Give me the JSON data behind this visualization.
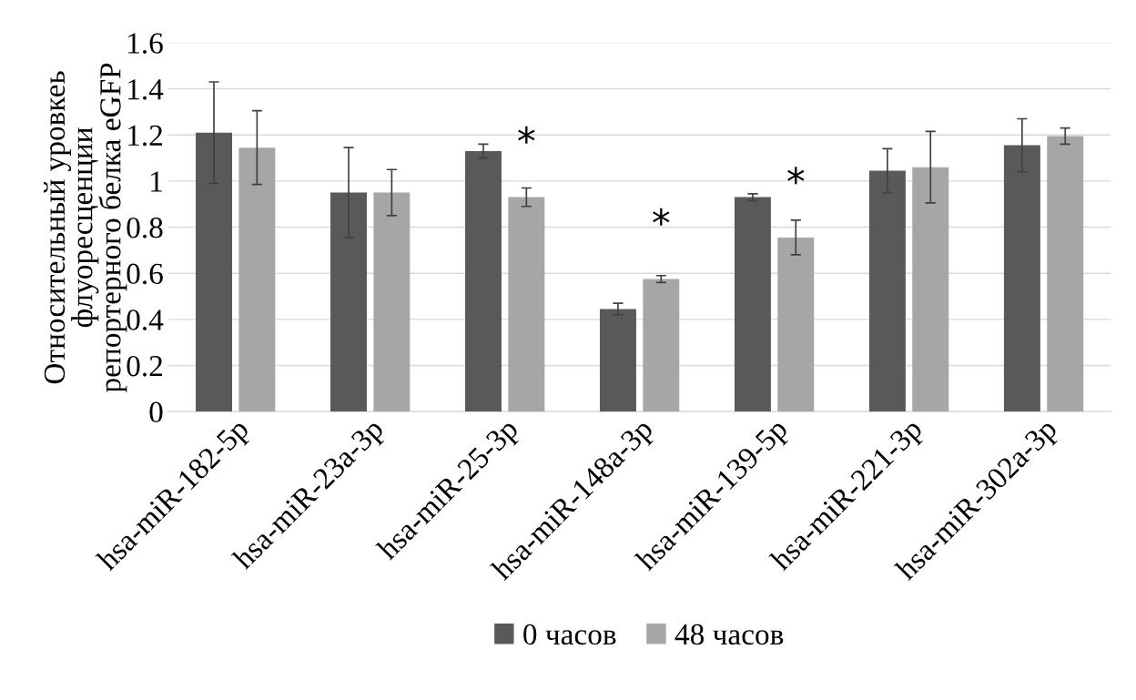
{
  "chart_data": {
    "type": "bar",
    "ylabel": "Относительный уровкеь\nфлуоресценции\nрепортерного белка eGFP",
    "categories": [
      "hsa-miR-182-5p",
      "hsa-miR-23a-3p",
      "hsa-miR-25-3p",
      "hsa-miR-148a-3p",
      "hsa-miR-139-5p",
      "hsa-miR-221-3p",
      "hsa-miR-302a-3p"
    ],
    "series": [
      {
        "name": "0 часов",
        "color": "#595959",
        "values": [
          1.21,
          0.95,
          1.13,
          0.445,
          0.93,
          1.045,
          1.155
        ],
        "errors": [
          0.22,
          0.195,
          0.03,
          0.025,
          0.015,
          0.095,
          0.115
        ]
      },
      {
        "name": "48 часов",
        "color": "#a6a6a6",
        "values": [
          1.145,
          0.95,
          0.93,
          0.575,
          0.755,
          1.06,
          1.195
        ],
        "errors": [
          0.16,
          0.1,
          0.04,
          0.015,
          0.075,
          0.155,
          0.035
        ]
      }
    ],
    "ylim": [
      0,
      1.6
    ],
    "yticks": [
      0,
      0.2,
      0.4,
      0.6,
      0.8,
      1,
      1.2,
      1.4,
      1.6
    ],
    "grid": "y",
    "legend": "bottom",
    "annotations": [
      {
        "text": "*",
        "x": "hsa-miR-25-3p",
        "y": 0.93
      },
      {
        "text": "*",
        "x": "hsa-miR-148a-3p",
        "y": 0.575
      },
      {
        "text": "*",
        "x": "hsa-miR-139-5p",
        "y": 0.755
      }
    ]
  }
}
